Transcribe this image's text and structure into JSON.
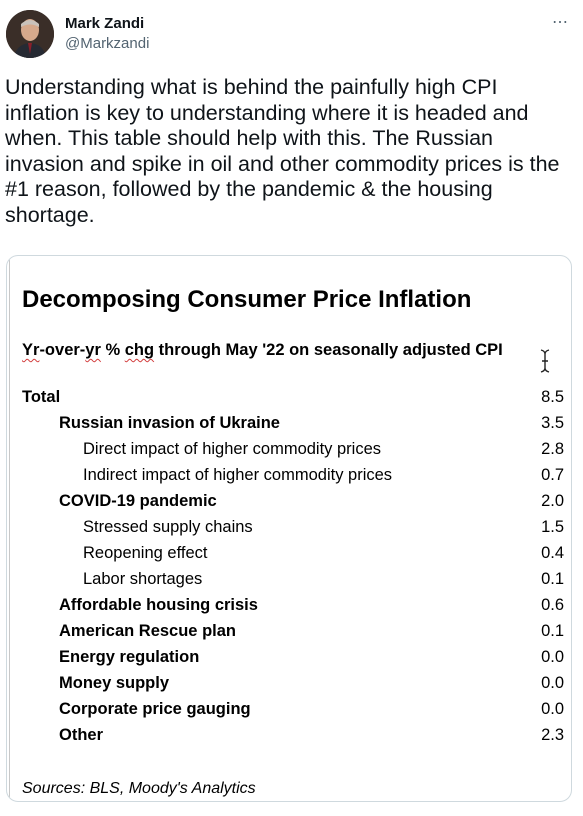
{
  "tweet": {
    "author_name": "Mark Zandi",
    "author_handle": "@Markzandi",
    "more_icon": "more-horizontal-icon",
    "text": "Understanding what is behind the painfully high CPI inflation is key to understanding where it is headed and when. This table should help with this. The Russian invasion and spike in oil and other commodity prices is the #1 reason, followed by the pandemic & the housing shortage."
  },
  "table": {
    "title": "Decomposing Consumer Price Inflation",
    "subtitle_parts": [
      "Yr",
      "-over-",
      "yr",
      " % ",
      "chg",
      " through May '22 on seasonally adjusted CPI"
    ],
    "rows": [
      {
        "label": "Total",
        "value": "8.5",
        "level": 0
      },
      {
        "label": "Russian invasion of Ukraine",
        "value": "3.5",
        "level": 1
      },
      {
        "label": "Direct impact of higher commodity prices",
        "value": "2.8",
        "level": 2
      },
      {
        "label": "Indirect impact of higher commodity prices",
        "value": "0.7",
        "level": 2
      },
      {
        "label": "COVID-19 pandemic",
        "value": "2.0",
        "level": 1
      },
      {
        "label": "Stressed supply chains",
        "value": "1.5",
        "level": 2
      },
      {
        "label": "Reopening effect",
        "value": "0.4",
        "level": 2
      },
      {
        "label": "Labor shortages",
        "value": "0.1",
        "level": 2
      },
      {
        "label": "Affordable housing crisis",
        "value": "0.6",
        "level": 1
      },
      {
        "label": "American Rescue plan",
        "value": "0.1",
        "level": 1
      },
      {
        "label": "Energy regulation",
        "value": "0.0",
        "level": 1
      },
      {
        "label": "Money supply",
        "value": "0.0",
        "level": 1
      },
      {
        "label": "Corporate price gauging",
        "value": "0.0",
        "level": 1
      },
      {
        "label": "Other",
        "value": "2.3",
        "level": 1
      }
    ],
    "source": "Sources: BLS, Moody's Analytics"
  }
}
